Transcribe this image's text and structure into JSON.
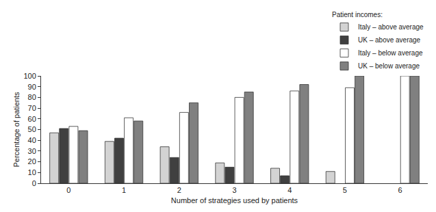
{
  "chart_data": {
    "type": "bar",
    "x_label": "Number of strategies used by patients",
    "y_label": "Percentage of patients",
    "legend_title": "Patient incomes:",
    "categories": [
      "0",
      "1",
      "2",
      "3",
      "4",
      "5",
      "6"
    ],
    "series": [
      {
        "name": "Italy – above average",
        "color": "#d3d3d3",
        "values": [
          47,
          39,
          34,
          19,
          14,
          11,
          null
        ]
      },
      {
        "name": "UK – above average",
        "color": "#404040",
        "values": [
          51,
          42,
          24,
          15,
          7,
          null,
          null
        ]
      },
      {
        "name": "Italy – below average",
        "color": "#ffffff",
        "values": [
          53,
          61,
          66,
          80,
          86,
          89,
          100
        ]
      },
      {
        "name": "UK – below average",
        "color": "#808080",
        "values": [
          49,
          58,
          75,
          85,
          92,
          100,
          100
        ]
      }
    ],
    "ylim": [
      0,
      100
    ],
    "yticks": [
      0,
      10,
      20,
      30,
      40,
      50,
      60,
      70,
      80,
      90,
      100
    ],
    "grid": false,
    "legend": "top right"
  }
}
